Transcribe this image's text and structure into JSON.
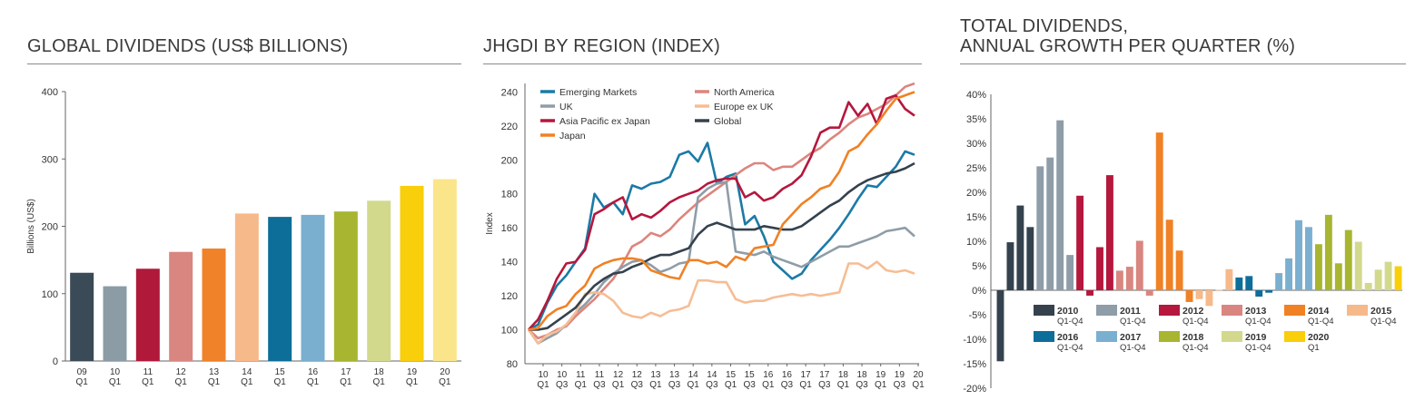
{
  "charts": {
    "left": {
      "title": "GLOBAL DIVIDENDS (US$ BILLIONS)",
      "ylabel": "Billions (US$)"
    },
    "middle": {
      "title": "JHGDI BY REGION (INDEX)",
      "ylabel": "Index"
    },
    "right": {
      "title_line1": "TOTAL DIVIDENDS,",
      "title_line2": "ANNUAL GROWTH PER QUARTER (%)"
    }
  },
  "chart_data": [
    {
      "type": "bar",
      "title": "GLOBAL DIVIDENDS (US$ BILLIONS)",
      "ylabel": "Billions (US$)",
      "ylim": [
        0,
        400
      ],
      "yticks": [
        0,
        100,
        200,
        300,
        400
      ],
      "grid": false,
      "categories": [
        [
          "09",
          "Q1"
        ],
        [
          "10",
          "Q1"
        ],
        [
          "11",
          "Q1"
        ],
        [
          "12",
          "Q1"
        ],
        [
          "13",
          "Q1"
        ],
        [
          "14",
          "Q1"
        ],
        [
          "15",
          "Q1"
        ],
        [
          "16",
          "Q1"
        ],
        [
          "17",
          "Q1"
        ],
        [
          "18",
          "Q1"
        ],
        [
          "19",
          "Q1"
        ],
        [
          "20",
          "Q1"
        ]
      ],
      "values": [
        131,
        111,
        137,
        162,
        167,
        219,
        214,
        217,
        222,
        238,
        260,
        270
      ],
      "colors": [
        "#3a4a57",
        "#8c9ca6",
        "#b0193a",
        "#d98680",
        "#f0822a",
        "#f6b98a",
        "#0d6e99",
        "#7aafd0",
        "#a7b530",
        "#d2d98d",
        "#f9ce0a",
        "#fbe58a"
      ]
    },
    {
      "type": "line",
      "title": "JHGDI BY REGION (INDEX)",
      "ylabel": "Index",
      "ylim": [
        80,
        245
      ],
      "yticks": [
        80,
        100,
        120,
        140,
        160,
        180,
        200,
        220,
        240
      ],
      "grid": false,
      "legend": "top-left",
      "x_tick_labels": [
        [
          "10",
          "Q1"
        ],
        [
          "10",
          "Q3"
        ],
        [
          "11",
          "Q1"
        ],
        [
          "11",
          "Q3"
        ],
        [
          "12",
          "Q1"
        ],
        [
          "12",
          "Q3"
        ],
        [
          "13",
          "Q1"
        ],
        [
          "13",
          "Q3"
        ],
        [
          "14",
          "Q1"
        ],
        [
          "14",
          "Q3"
        ],
        [
          "15",
          "Q1"
        ],
        [
          "15",
          "Q3"
        ],
        [
          "16",
          "Q1"
        ],
        [
          "16",
          "Q3"
        ],
        [
          "17",
          "Q1"
        ],
        [
          "17",
          "Q3"
        ],
        [
          "18",
          "Q1"
        ],
        [
          "18",
          "Q3"
        ],
        [
          "19",
          "Q1"
        ],
        [
          "19",
          "Q3"
        ],
        [
          "20",
          "Q1"
        ]
      ],
      "series": [
        {
          "name": "Emerging Markets",
          "color": "#1b7aa6",
          "values": [
            100,
            103,
            116,
            126,
            132,
            140,
            148,
            180,
            172,
            175,
            168,
            185,
            183,
            186,
            187,
            190,
            203,
            205,
            199,
            210,
            186,
            190,
            192,
            162,
            167,
            155,
            140,
            135,
            130,
            133,
            141,
            147,
            153,
            160,
            168,
            177,
            185,
            184,
            190,
            196,
            205,
            203
          ]
        },
        {
          "name": "North America",
          "color": "#dc857d",
          "values": [
            100,
            95,
            97,
            100,
            102,
            108,
            113,
            118,
            124,
            130,
            139,
            149,
            152,
            157,
            155,
            159,
            165,
            170,
            175,
            179,
            183,
            187,
            191,
            195,
            198,
            198,
            194,
            196,
            196,
            200,
            204,
            207,
            212,
            216,
            221,
            225,
            227,
            230,
            233,
            238,
            243,
            245
          ]
        },
        {
          "name": "UK",
          "color": "#8e9da8",
          "values": [
            100,
            92,
            95,
            98,
            103,
            110,
            115,
            121,
            128,
            133,
            137,
            140,
            141,
            138,
            134,
            136,
            139,
            140,
            178,
            183,
            186,
            187,
            146,
            145,
            144,
            146,
            143,
            141,
            139,
            137,
            140,
            143,
            146,
            149,
            149,
            151,
            153,
            155,
            158,
            159,
            160,
            155
          ]
        },
        {
          "name": "Europe ex UK",
          "color": "#f6bd94",
          "values": [
            100,
            92,
            97,
            99,
            103,
            110,
            121,
            122,
            121,
            117,
            110,
            108,
            107,
            110,
            108,
            111,
            112,
            114,
            129,
            129,
            128,
            128,
            118,
            116,
            117,
            117,
            119,
            120,
            121,
            120,
            121,
            120,
            121,
            122,
            139,
            139,
            136,
            140,
            135,
            134,
            135,
            133
          ]
        },
        {
          "name": "Asia Pacific ex Japan",
          "color": "#b5173d",
          "values": [
            100,
            106,
            117,
            130,
            139,
            140,
            147,
            168,
            171,
            175,
            178,
            165,
            168,
            166,
            170,
            175,
            178,
            180,
            182,
            186,
            188,
            189,
            189,
            178,
            181,
            176,
            178,
            183,
            186,
            191,
            202,
            216,
            219,
            219,
            234,
            226,
            233,
            221,
            236,
            238,
            230,
            226
          ]
        },
        {
          "name": "Global",
          "color": "#34424e",
          "values": [
            100,
            100,
            101,
            105,
            109,
            113,
            120,
            126,
            130,
            133,
            134,
            137,
            139,
            142,
            144,
            144,
            146,
            148,
            156,
            161,
            163,
            161,
            159,
            159,
            159,
            161,
            160,
            159,
            159,
            161,
            165,
            169,
            173,
            176,
            181,
            185,
            188,
            190,
            192,
            193,
            195,
            198
          ]
        },
        {
          "name": "Japan",
          "color": "#f08124",
          "values": [
            100,
            101,
            108,
            112,
            114,
            121,
            126,
            136,
            139,
            141,
            142,
            142,
            141,
            135,
            133,
            131,
            130,
            141,
            141,
            139,
            140,
            137,
            143,
            141,
            148,
            149,
            150,
            162,
            168,
            174,
            178,
            183,
            185,
            193,
            205,
            208,
            215,
            221,
            229,
            236,
            238,
            240
          ]
        }
      ]
    },
    {
      "type": "bar",
      "title": "TOTAL DIVIDENDS, ANNUAL GROWTH PER QUARTER (%)",
      "ylim": [
        -20,
        40
      ],
      "yticks": [
        "40%",
        "35%",
        "30%",
        "25%",
        "20%",
        "15%",
        "10%",
        "5%",
        "0%",
        "-5%",
        "-10%",
        "-15%",
        "-20%"
      ],
      "grid": false,
      "legend": "bottom-right",
      "legend_entries": [
        {
          "year": "2010",
          "sub": "Q1-Q4",
          "color": "#34424e"
        },
        {
          "year": "2011",
          "sub": "Q1-Q4",
          "color": "#8e9da8"
        },
        {
          "year": "2012",
          "sub": "Q1-Q4",
          "color": "#b5173d"
        },
        {
          "year": "2013",
          "sub": "Q1-Q4",
          "color": "#d98680"
        },
        {
          "year": "2014",
          "sub": "Q1-Q4",
          "color": "#f08124"
        },
        {
          "year": "2015",
          "sub": "Q1-Q4",
          "color": "#f6b98a"
        },
        {
          "year": "2016",
          "sub": "Q1-Q4",
          "color": "#0d6e99"
        },
        {
          "year": "2017",
          "sub": "Q1-Q4",
          "color": "#7aafd0"
        },
        {
          "year": "2018",
          "sub": "Q1-Q4",
          "color": "#a7b530"
        },
        {
          "year": "2019",
          "sub": "Q1-Q4",
          "color": "#d2d98d"
        },
        {
          "year": "2020",
          "sub": "Q1",
          "color": "#f9ce0a"
        }
      ],
      "groups": [
        {
          "year": "2010",
          "color": "#34424e",
          "values": [
            -14.5,
            9.8,
            17.3,
            12.9
          ]
        },
        {
          "year": "2011",
          "color": "#8e9da8",
          "values": [
            25.3,
            27.1,
            34.7,
            7.2
          ]
        },
        {
          "year": "2012",
          "color": "#b5173d",
          "values": [
            19.3,
            -1.1,
            8.8,
            23.5
          ]
        },
        {
          "year": "2013",
          "color": "#d98680",
          "values": [
            4.0,
            4.8,
            10.1,
            -1.1
          ]
        },
        {
          "year": "2014",
          "color": "#f08124",
          "values": [
            32.2,
            14.4,
            8.1,
            -2.4
          ]
        },
        {
          "year": "2015",
          "color": "#f6b98a",
          "values": [
            -1.8,
            -3.2,
            0.1,
            4.3
          ]
        },
        {
          "year": "2016",
          "color": "#0d6e99",
          "values": [
            2.6,
            2.9,
            -1.3,
            -0.5
          ]
        },
        {
          "year": "2017",
          "color": "#7aafd0",
          "values": [
            3.5,
            6.5,
            14.3,
            12.9
          ]
        },
        {
          "year": "2018",
          "color": "#a7b530",
          "values": [
            9.4,
            15.4,
            5.5,
            12.3
          ]
        },
        {
          "year": "2019",
          "color": "#d2d98d",
          "values": [
            9.9,
            1.5,
            4.2,
            5.8
          ]
        },
        {
          "year": "2020",
          "color": "#f9ce0a",
          "values": [
            4.9
          ]
        }
      ]
    }
  ]
}
